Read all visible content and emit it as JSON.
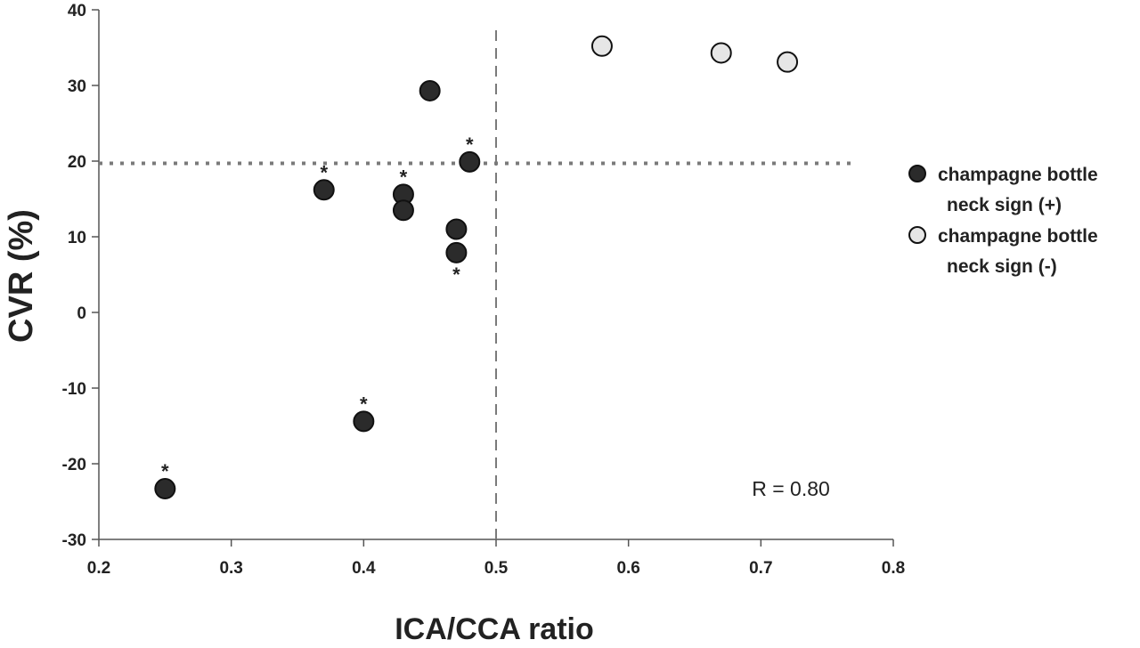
{
  "chart_data": {
    "type": "scatter",
    "title": "",
    "xlabel": "ICA/CCA ratio",
    "ylabel": "CVR (%)",
    "xlim": [
      0.2,
      0.8
    ],
    "ylim": [
      -30,
      40
    ],
    "xticks": [
      "0.2",
      "0.3",
      "0.4",
      "0.5",
      "0.6",
      "0.7",
      "0.8"
    ],
    "yticks": [
      "40",
      "30",
      "20",
      "10",
      "0",
      "-10",
      "-20",
      "-30"
    ],
    "grid": false,
    "legend_position": "right",
    "series": [
      {
        "name": "champagne bottle neck sign (+)",
        "legend_lines": [
          "champagne bottle",
          "neck sign (+)"
        ],
        "color": "#2b2b2b",
        "points": [
          {
            "x": 0.25,
            "y": -23.3,
            "star": "above"
          },
          {
            "x": 0.37,
            "y": 16.2,
            "star": "above"
          },
          {
            "x": 0.4,
            "y": -14.4,
            "star": "above"
          },
          {
            "x": 0.43,
            "y": 15.6,
            "star": "above"
          },
          {
            "x": 0.43,
            "y": 13.5,
            "star": ""
          },
          {
            "x": 0.45,
            "y": 29.3,
            "star": ""
          },
          {
            "x": 0.47,
            "y": 11.0,
            "star": ""
          },
          {
            "x": 0.47,
            "y": 7.9,
            "star": "below"
          },
          {
            "x": 0.48,
            "y": 19.9,
            "star": "above"
          }
        ]
      },
      {
        "name": "champagne bottle neck sign (-)",
        "legend_lines": [
          "champagne bottle",
          "neck sign (-)"
        ],
        "color": "#e6e6e6",
        "points": [
          {
            "x": 0.58,
            "y": 35.2,
            "star": ""
          },
          {
            "x": 0.67,
            "y": 34.3,
            "star": ""
          },
          {
            "x": 0.72,
            "y": 33.1,
            "star": ""
          }
        ]
      }
    ],
    "reference_lines": [
      {
        "orientation": "horizontal",
        "value": 19.7,
        "style": "dotted"
      },
      {
        "orientation": "vertical",
        "value": 0.5,
        "style": "dashed"
      }
    ],
    "annotation": "R = 0.80",
    "marker_symbol": "*"
  }
}
